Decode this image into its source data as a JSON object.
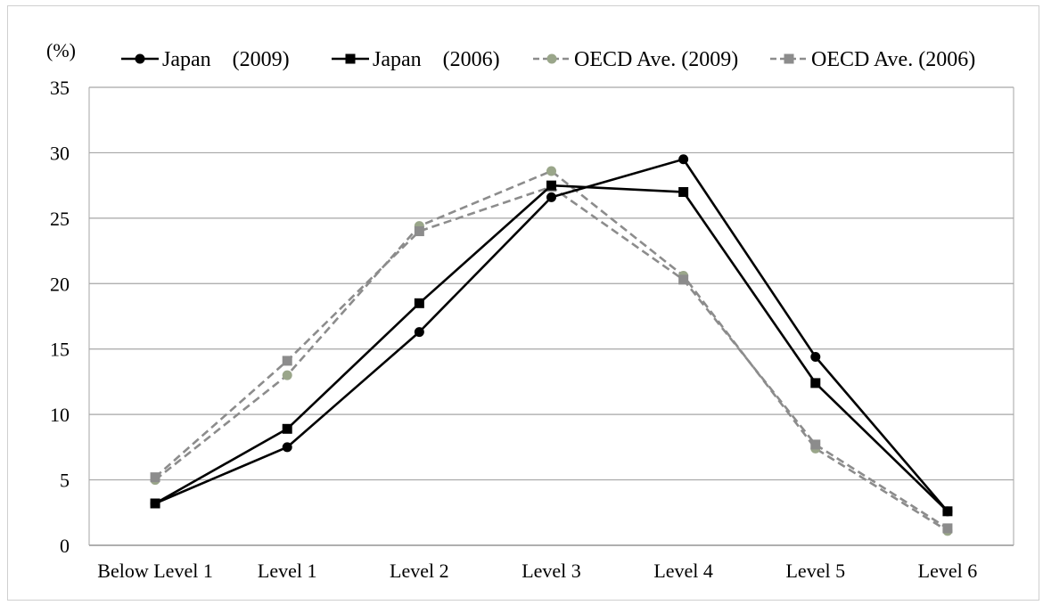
{
  "chart_data": {
    "type": "line",
    "title": "",
    "unit_label": "(%)",
    "xlabel": "",
    "ylabel": "",
    "ylim": [
      0,
      35
    ],
    "yticks": [
      0,
      5,
      10,
      15,
      20,
      25,
      30,
      35
    ],
    "grid": "horizontal",
    "legend_position": "top",
    "categories": [
      "Below Level 1",
      "Level 1",
      "Level 2",
      "Level 3",
      "Level 4",
      "Level 5",
      "Level 6"
    ],
    "series": [
      {
        "name": "Japan　(2009)",
        "values": [
          3.2,
          7.5,
          16.3,
          26.6,
          29.5,
          14.4,
          2.6
        ],
        "color": "#000000",
        "dash": "solid",
        "marker": "circle"
      },
      {
        "name": "Japan　(2006)",
        "values": [
          3.2,
          8.9,
          18.5,
          27.5,
          27.0,
          12.4,
          2.6
        ],
        "color": "#000000",
        "dash": "solid",
        "marker": "square"
      },
      {
        "name": "OECD Ave. (2009)",
        "values": [
          5.0,
          13.0,
          24.4,
          28.6,
          20.6,
          7.4,
          1.1
        ],
        "color": "#8c8c8c",
        "marker_color": "#9aa68a",
        "dash": "dashed",
        "marker": "circle"
      },
      {
        "name": "OECD Ave. (2006)",
        "values": [
          5.2,
          14.1,
          24.0,
          27.4,
          20.3,
          7.7,
          1.3
        ],
        "color": "#8c8c8c",
        "dash": "dashed",
        "marker": "square"
      }
    ]
  }
}
